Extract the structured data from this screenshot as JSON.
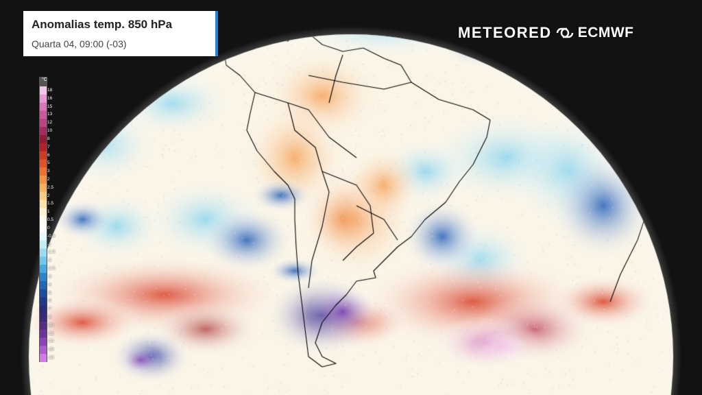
{
  "header": {
    "title": "Anomalias temp. 850 hPa",
    "subtitle": "Quarta 04, 09:00 (-03)"
  },
  "branding": {
    "primary": "METEORED",
    "secondary": "ECMWF",
    "separator_icon": "meteored-ecmwf-link-icon"
  },
  "legend": {
    "unit": "°C",
    "values": [
      "18",
      "16",
      "15",
      "13",
      "12",
      "10",
      "8",
      "7",
      "6",
      "5",
      "3",
      "2",
      "2.5",
      "2",
      "1.5",
      "1",
      "0.5",
      "0",
      "-0.5",
      "-1",
      "-1.5",
      "-2",
      "-2.5",
      "-3",
      "-4",
      "-5",
      "-6",
      "-7",
      "-8",
      "-10",
      "-12",
      "-14",
      "-16",
      "-18"
    ],
    "colors": [
      "#f2c6e8",
      "#e89ad2",
      "#d877b8",
      "#c95b9b",
      "#b84484",
      "#a32d5f",
      "#8e1d35",
      "#b0232a",
      "#cf3a26",
      "#e0522a",
      "#ec7236",
      "#f29448",
      "#f6b264",
      "#f8cc86",
      "#fae2ac",
      "#fcf2d4",
      "#fffdf5",
      "#ffffff",
      "#e9f8fb",
      "#c6ecf4",
      "#9cdcee",
      "#72c6e8",
      "#4aa7dc",
      "#2f84c9",
      "#2366b4",
      "#1d4e9c",
      "#1f3b86",
      "#2a2e7a",
      "#3a2878",
      "#52307f",
      "#6b3695",
      "#8a44b3",
      "#ab5ccd",
      "#d07ce2"
    ]
  },
  "colors": {
    "background": "#121212",
    "accent": "#1e88d6",
    "borders": "#000000"
  }
}
